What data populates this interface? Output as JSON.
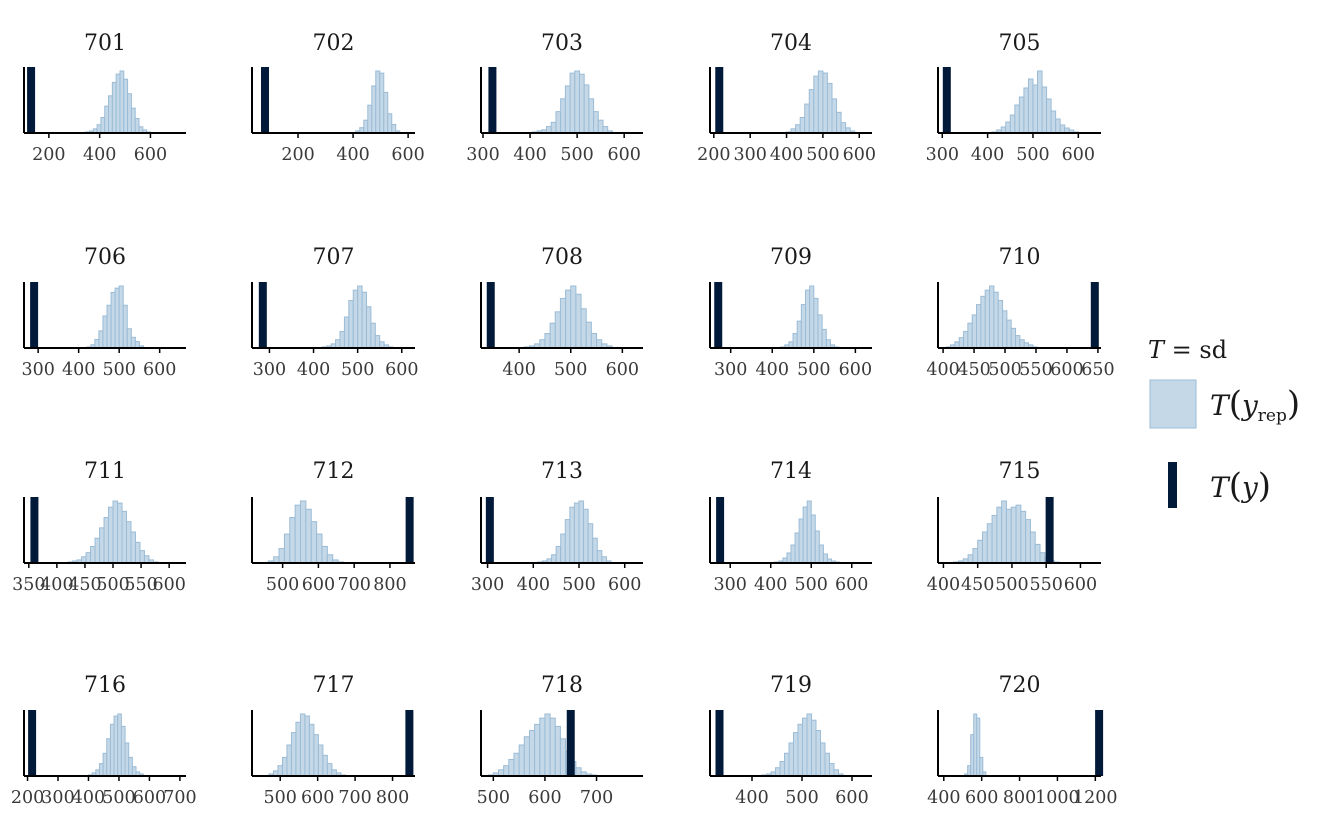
{
  "colors": {
    "hist_fill": "#c4d8e8",
    "hist_stroke": "#9bbcd6",
    "observed": "#021a3a",
    "axis": "#000000"
  },
  "legend": {
    "title_stat_symbol": "T",
    "title_equals": " = ",
    "title_stat_name": "sd",
    "rep_label": {
      "func": "T",
      "var": "y",
      "sub": "rep"
    },
    "obs_label": {
      "func": "T",
      "var": "y"
    }
  },
  "chart_data": {
    "type": "histogram",
    "statistic": "sd",
    "facets": [
      {
        "title": "701",
        "xlim": [
          110,
          740
        ],
        "ticks": [
          200,
          400,
          600
        ],
        "tick_labels": [
          "200",
          "400",
          "600"
        ],
        "observed": 130,
        "bins": {
          "start": 345,
          "width": 15,
          "counts": [
            1,
            2,
            4,
            8,
            15,
            26,
            36,
            49,
            57,
            60,
            52,
            38,
            24,
            14,
            6,
            3,
            1
          ]
        }
      },
      {
        "title": "702",
        "xlim": [
          40,
          625
        ],
        "ticks": [
          200,
          400,
          600
        ],
        "tick_labels": [
          "200",
          "400",
          "600"
        ],
        "observed": 80,
        "bins": {
          "start": 410,
          "width": 14.5,
          "counts": [
            2,
            5,
            12,
            26,
            44,
            58,
            56,
            38,
            18,
            8,
            2
          ]
        }
      },
      {
        "title": "703",
        "xlim": [
          300,
          640
        ],
        "ticks": [
          300,
          400,
          500,
          600
        ],
        "tick_labels": [
          "300",
          "400",
          "500",
          "600"
        ],
        "observed": 320,
        "bins": {
          "start": 405,
          "width": 10,
          "counts": [
            1,
            2,
            3,
            6,
            10,
            20,
            32,
            44,
            56,
            58,
            55,
            45,
            32,
            20,
            12,
            6,
            2
          ]
        }
      },
      {
        "title": "704",
        "xlim": [
          195,
          635
        ],
        "ticks": [
          200,
          300,
          400,
          500,
          600
        ],
        "tick_labels": [
          "200",
          "300",
          "400",
          "500",
          "600"
        ],
        "observed": 215,
        "bins": {
          "start": 400,
          "width": 12.5,
          "counts": [
            1,
            4,
            8,
            15,
            28,
            42,
            55,
            60,
            58,
            48,
            33,
            20,
            10,
            5,
            2
          ]
        }
      },
      {
        "title": "705",
        "xlim": [
          295,
          650
        ],
        "ticks": [
          300,
          400,
          500,
          600
        ],
        "tick_labels": [
          "300",
          "400",
          "500",
          "600"
        ],
        "observed": 310,
        "bins": {
          "start": 410,
          "width": 10,
          "counts": [
            1,
            3,
            6,
            11,
            18,
            28,
            36,
            45,
            54,
            48,
            62,
            46,
            34,
            22,
            14,
            8,
            5,
            3,
            1
          ]
        }
      },
      {
        "title": "706",
        "xlim": [
          270,
          665
        ],
        "ticks": [
          300,
          400,
          500,
          600
        ],
        "tick_labels": [
          "300",
          "400",
          "500",
          "600"
        ],
        "observed": 290,
        "bins": {
          "start": 420,
          "width": 10,
          "counts": [
            1,
            3,
            8,
            16,
            30,
            40,
            52,
            56,
            58,
            40,
            18,
            10,
            6,
            2
          ]
        }
      },
      {
        "title": "707",
        "xlim": [
          265,
          630
        ],
        "ticks": [
          300,
          400,
          500,
          600
        ],
        "tick_labels": [
          "300",
          "400",
          "500",
          "600"
        ],
        "observed": 285,
        "bins": {
          "start": 420,
          "width": 10,
          "counts": [
            1,
            2,
            4,
            8,
            16,
            30,
            46,
            56,
            60,
            54,
            40,
            24,
            12,
            6,
            3,
            1
          ]
        }
      },
      {
        "title": "708",
        "xlim": [
          330,
          640
        ],
        "ticks": [
          400,
          500,
          600
        ],
        "tick_labels": [
          "400",
          "500",
          "600"
        ],
        "observed": 345,
        "bins": {
          "start": 410,
          "width": 10,
          "counts": [
            1,
            2,
            4,
            8,
            14,
            24,
            35,
            48,
            56,
            60,
            52,
            38,
            25,
            14,
            8,
            4,
            2
          ]
        }
      },
      {
        "title": "709",
        "xlim": [
          255,
          640
        ],
        "ticks": [
          300,
          400,
          500,
          600
        ],
        "tick_labels": [
          "300",
          "400",
          "500",
          "600"
        ],
        "observed": 270,
        "bins": {
          "start": 420,
          "width": 10,
          "counts": [
            1,
            3,
            6,
            14,
            26,
            42,
            56,
            60,
            48,
            32,
            18,
            8,
            3,
            1
          ]
        }
      },
      {
        "title": "710",
        "xlim": [
          395,
          655
        ],
        "ticks": [
          400,
          450,
          500,
          550,
          600,
          650
        ],
        "tick_labels": [
          "400",
          "450",
          "500",
          "550",
          "600",
          "650"
        ],
        "observed": 645,
        "bins": {
          "start": 405,
          "width": 7,
          "counts": [
            1,
            3,
            6,
            10,
            16,
            24,
            32,
            42,
            50,
            56,
            60,
            54,
            46,
            36,
            27,
            19,
            12,
            8,
            5,
            3,
            1
          ]
        }
      },
      {
        "title": "711",
        "xlim": [
          345,
          630
        ],
        "ticks": [
          350,
          400,
          450,
          500,
          550,
          600
        ],
        "tick_labels": [
          "350",
          "400",
          "450",
          "500",
          "550",
          "600"
        ],
        "observed": 360,
        "bins": {
          "start": 420,
          "width": 8,
          "counts": [
            1,
            2,
            3,
            6,
            10,
            16,
            24,
            34,
            44,
            54,
            60,
            58,
            50,
            40,
            30,
            20,
            12,
            7,
            3,
            1
          ]
        }
      },
      {
        "title": "712",
        "xlim": [
          420,
          870
        ],
        "ticks": [
          500,
          600,
          700,
          800
        ],
        "tick_labels": [
          "500",
          "600",
          "700",
          "800"
        ],
        "observed": 855,
        "bins": {
          "start": 460,
          "width": 15,
          "counts": [
            2,
            6,
            14,
            28,
            44,
            56,
            60,
            52,
            40,
            28,
            16,
            8,
            3,
            1
          ]
        }
      },
      {
        "title": "713",
        "xlim": [
          290,
          640
        ],
        "ticks": [
          300,
          400,
          500,
          600
        ],
        "tick_labels": [
          "300",
          "400",
          "500",
          "600"
        ],
        "observed": 305,
        "bins": {
          "start": 410,
          "width": 10,
          "counts": [
            1,
            2,
            4,
            8,
            16,
            28,
            42,
            54,
            58,
            60,
            52,
            38,
            24,
            12,
            6,
            2
          ]
        }
      },
      {
        "title": "714",
        "xlim": [
          255,
          650
        ],
        "ticks": [
          300,
          400,
          500,
          600
        ],
        "tick_labels": [
          "300",
          "400",
          "500",
          "600"
        ],
        "observed": 275,
        "bins": {
          "start": 410,
          "width": 10,
          "counts": [
            1,
            2,
            5,
            10,
            18,
            30,
            44,
            56,
            62,
            48,
            32,
            18,
            9,
            4,
            2,
            1
          ]
        }
      },
      {
        "title": "715",
        "xlim": [
          395,
          630
        ],
        "ticks": [
          400,
          450,
          500,
          550,
          600
        ],
        "tick_labels": [
          "400",
          "450",
          "500",
          "550",
          "600"
        ],
        "observed": 555,
        "bins": {
          "start": 415,
          "width": 7,
          "counts": [
            1,
            2,
            4,
            8,
            14,
            22,
            30,
            38,
            46,
            54,
            60,
            52,
            54,
            56,
            50,
            42,
            30,
            18,
            10,
            5,
            2,
            1
          ]
        }
      },
      {
        "title": "716",
        "xlim": [
          195,
          720
        ],
        "ticks": [
          200,
          300,
          400,
          500,
          600,
          700
        ],
        "tick_labels": [
          "200",
          "300",
          "400",
          "500",
          "600",
          "700"
        ],
        "observed": 215,
        "bins": {
          "start": 400,
          "width": 12,
          "counts": [
            1,
            3,
            6,
            12,
            22,
            36,
            50,
            58,
            60,
            48,
            32,
            18,
            9,
            4,
            2
          ]
        }
      },
      {
        "title": "717",
        "xlim": [
          430,
          860
        ],
        "ticks": [
          500,
          600,
          700,
          800
        ],
        "tick_labels": [
          "500",
          "600",
          "700",
          "800"
        ],
        "observed": 845,
        "bins": {
          "start": 470,
          "width": 12,
          "counts": [
            2,
            5,
            10,
            18,
            30,
            42,
            52,
            60,
            58,
            50,
            40,
            30,
            20,
            12,
            6,
            3,
            1
          ]
        }
      },
      {
        "title": "718",
        "xlim": [
          480,
          790
        ],
        "ticks": [
          500,
          600,
          700
        ],
        "tick_labels": [
          "500",
          "600",
          "700"
        ],
        "observed": 650,
        "bins": {
          "start": 490,
          "width": 10,
          "counts": [
            1,
            3,
            6,
            10,
            16,
            22,
            30,
            38,
            44,
            50,
            56,
            60,
            56,
            48,
            36,
            24,
            14,
            8,
            4,
            2,
            1
          ]
        }
      },
      {
        "title": "719",
        "xlim": [
          320,
          640
        ],
        "ticks": [
          400,
          500,
          600
        ],
        "tick_labels": [
          "400",
          "500",
          "600"
        ],
        "observed": 335,
        "bins": {
          "start": 420,
          "width": 9,
          "counts": [
            1,
            2,
            4,
            8,
            14,
            22,
            32,
            42,
            50,
            56,
            60,
            54,
            44,
            32,
            22,
            12,
            6,
            2
          ]
        }
      },
      {
        "title": "720",
        "xlim": [
          380,
          1230
        ],
        "ticks": [
          400,
          600,
          800,
          1000,
          1200
        ],
        "tick_labels": [
          "400",
          "600",
          "800",
          "1000",
          "1200"
        ],
        "observed": 1220,
        "bins": {
          "start": 510,
          "width": 16,
          "counts": [
            2,
            10,
            40,
            60,
            56,
            18,
            4
          ]
        }
      }
    ]
  }
}
